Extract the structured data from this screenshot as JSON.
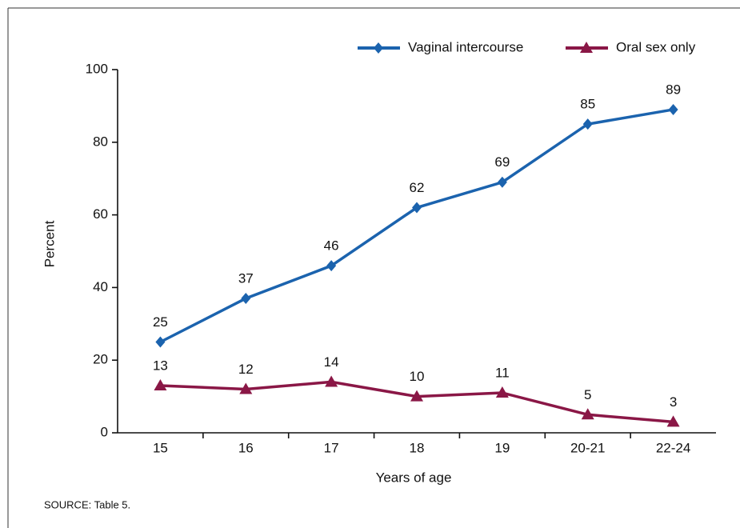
{
  "chart_data": {
    "type": "line",
    "x_label": "Years of age",
    "y_label": "Percent",
    "source": "SOURCE: Table 5.",
    "categories": [
      "15",
      "16",
      "17",
      "18",
      "19",
      "20-21",
      "22-24"
    ],
    "series": [
      {
        "name": "Vaginal intercourse",
        "color": "#1b63ae",
        "marker": "diamond",
        "values": [
          25,
          37,
          46,
          62,
          69,
          85,
          89
        ]
      },
      {
        "name": "Oral sex only",
        "color": "#8a1746",
        "marker": "triangle",
        "values": [
          13,
          12,
          14,
          10,
          11,
          5,
          3
        ]
      }
    ],
    "ylim": [
      0,
      100
    ],
    "yticks": [
      0,
      20,
      40,
      60,
      80,
      100
    ],
    "grid": false,
    "legend": "top-right"
  }
}
